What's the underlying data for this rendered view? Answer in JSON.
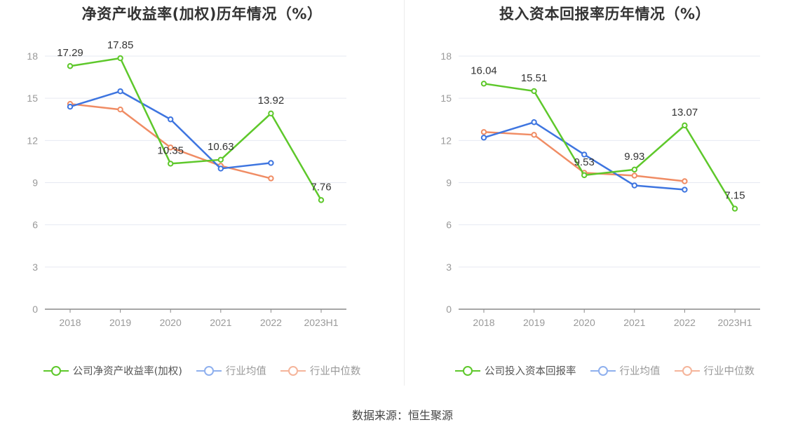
{
  "source": "数据来源：恒生聚源",
  "colors": {
    "company": "#5ec82b",
    "avg": "#3e75e0",
    "median": "#f08c64",
    "avg_legend": "#8fb0ee",
    "median_legend": "#f5b59b",
    "grid": "#e6e9f2",
    "axis": "#999999",
    "label": "#333333"
  },
  "chart_data": [
    {
      "type": "line",
      "title": "净资产收益率(加权)历年情况（%）",
      "categories": [
        "2018",
        "2019",
        "2020",
        "2021",
        "2022",
        "2023H1"
      ],
      "ylim": [
        0,
        18
      ],
      "yticks": [
        0,
        3,
        6,
        9,
        12,
        15,
        18
      ],
      "grid": true,
      "legend_position": "bottom",
      "series": [
        {
          "name": "公司净资产收益率(加权)",
          "values": [
            17.29,
            17.85,
            10.35,
            10.63,
            13.92,
            7.76
          ],
          "labels": [
            "17.29",
            "17.85",
            "10.35",
            "10.63",
            "13.92",
            "7.76"
          ]
        },
        {
          "name": "行业均值",
          "values": [
            14.4,
            15.5,
            13.5,
            10.0,
            10.4,
            null
          ]
        },
        {
          "name": "行业中位数",
          "values": [
            14.6,
            14.2,
            11.5,
            10.2,
            9.3,
            null
          ]
        }
      ]
    },
    {
      "type": "line",
      "title": "投入资本回报率历年情况（%）",
      "categories": [
        "2018",
        "2019",
        "2020",
        "2021",
        "2022",
        "2023H1"
      ],
      "ylim": [
        0,
        18
      ],
      "yticks": [
        0,
        3,
        6,
        9,
        12,
        15,
        18
      ],
      "grid": true,
      "legend_position": "bottom",
      "series": [
        {
          "name": "公司投入资本回报率",
          "values": [
            16.04,
            15.51,
            9.53,
            9.93,
            13.07,
            7.15
          ],
          "labels": [
            "16.04",
            "15.51",
            "9.53",
            "9.93",
            "13.07",
            "7.15"
          ]
        },
        {
          "name": "行业均值",
          "values": [
            12.2,
            13.3,
            11.0,
            8.8,
            8.5,
            null
          ]
        },
        {
          "name": "行业中位数",
          "values": [
            12.6,
            12.4,
            9.7,
            9.5,
            9.1,
            null
          ]
        }
      ]
    }
  ]
}
